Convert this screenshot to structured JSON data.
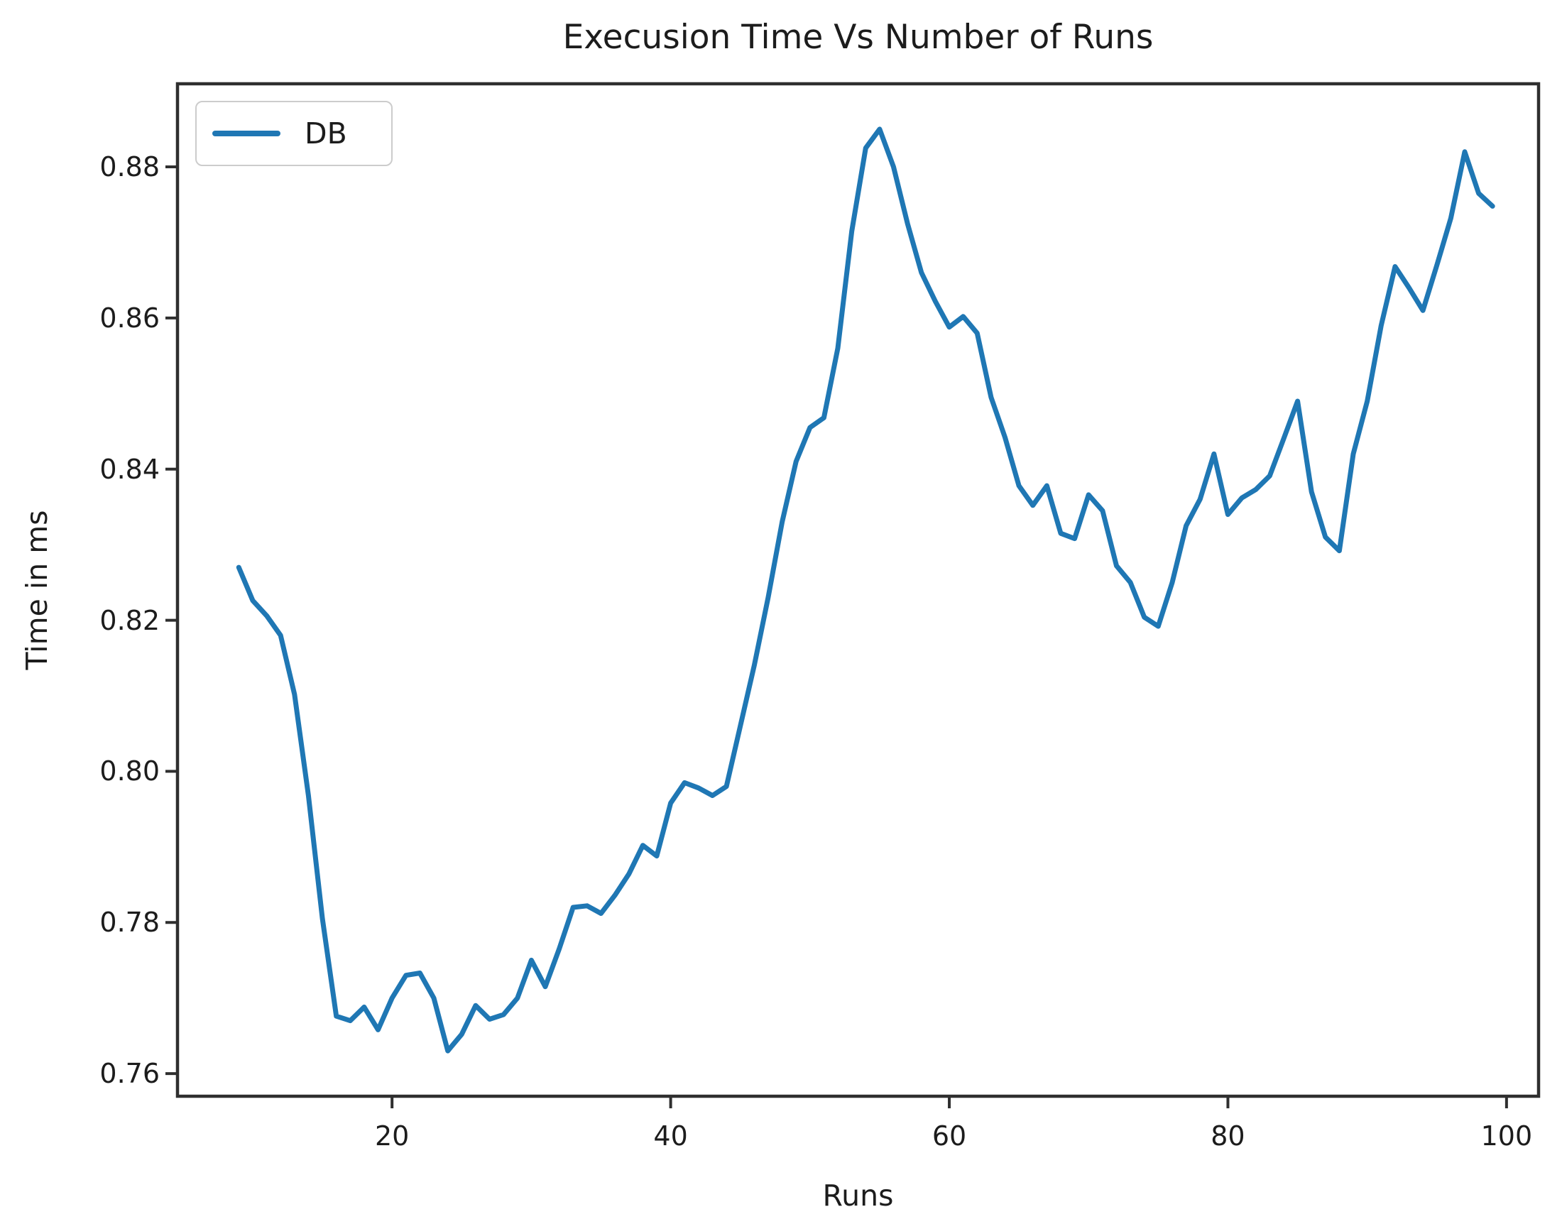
{
  "figure": {
    "title": "Execusion Time Vs Number of Runs",
    "background_color": "#ffffff",
    "text_color": "#1c1c1c",
    "spine_color": "#2f2f2f"
  },
  "legend": {
    "entries": [
      {
        "label": "DB",
        "color": "#1f77b4"
      }
    ]
  },
  "chart_data": {
    "type": "line",
    "title": "Execusion Time Vs Number of Runs",
    "xlabel": "Runs",
    "ylabel": "Time in ms",
    "legend_position": "upper left",
    "grid": false,
    "line_color": "#1f77b4",
    "xlim": [
      4.6,
      102.3
    ],
    "ylim": [
      0.757,
      0.891
    ],
    "xticks": [
      20,
      40,
      60,
      80,
      100
    ],
    "yticks": [
      0.76,
      0.78,
      0.8,
      0.82,
      0.84,
      0.86,
      0.88
    ],
    "series": [
      {
        "name": "DB",
        "x": [
          9,
          10,
          11,
          12,
          13,
          14,
          15,
          16,
          17,
          18,
          19,
          20,
          21,
          22,
          23,
          24,
          25,
          26,
          27,
          28,
          29,
          30,
          31,
          32,
          33,
          34,
          35,
          36,
          37,
          38,
          39,
          40,
          41,
          42,
          43,
          44,
          45,
          46,
          47,
          48,
          49,
          50,
          51,
          52,
          53,
          54,
          55,
          56,
          57,
          58,
          59,
          60,
          61,
          62,
          63,
          64,
          65,
          66,
          67,
          68,
          69,
          70,
          71,
          72,
          73,
          74,
          75,
          76,
          77,
          78,
          79,
          80,
          81,
          82,
          83,
          84,
          85,
          86,
          87,
          88,
          89,
          90,
          91,
          92,
          93,
          94,
          95,
          96,
          97,
          98,
          99
        ],
        "y": [
          0.827,
          0.8226,
          0.8206,
          0.818,
          0.8102,
          0.7968,
          0.7805,
          0.7676,
          0.767,
          0.7688,
          0.7658,
          0.77,
          0.773,
          0.7733,
          0.77,
          0.763,
          0.7652,
          0.769,
          0.7672,
          0.7678,
          0.77,
          0.775,
          0.7715,
          0.7765,
          0.782,
          0.7822,
          0.7812,
          0.7836,
          0.7864,
          0.7902,
          0.7888,
          0.7958,
          0.7985,
          0.7978,
          0.7968,
          0.798,
          0.806,
          0.814,
          0.823,
          0.833,
          0.841,
          0.8455,
          0.8468,
          0.856,
          0.8715,
          0.8825,
          0.885,
          0.88,
          0.8725,
          0.866,
          0.8622,
          0.8588,
          0.8602,
          0.858,
          0.8495,
          0.8442,
          0.8378,
          0.8352,
          0.8378,
          0.8315,
          0.8308,
          0.8366,
          0.8345,
          0.8272,
          0.825,
          0.8204,
          0.8192,
          0.825,
          0.8325,
          0.836,
          0.842,
          0.834,
          0.8362,
          0.8373,
          0.8391,
          0.844,
          0.849,
          0.837,
          0.831,
          0.8292,
          0.842,
          0.849,
          0.859,
          0.8668,
          0.864,
          0.861,
          0.867,
          0.8732,
          0.882,
          0.8765,
          0.8748
        ]
      }
    ]
  }
}
